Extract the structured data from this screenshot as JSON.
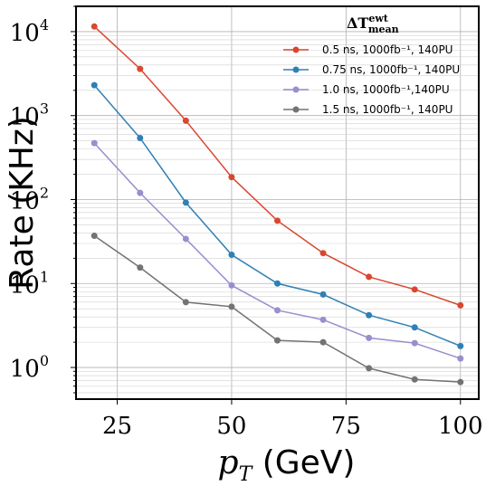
{
  "chart_data": {
    "type": "line",
    "x": [
      20,
      30,
      40,
      50,
      60,
      70,
      80,
      90,
      100
    ],
    "series": [
      {
        "name": "0.5 ns, 1000fb⁻¹, 140PU",
        "color": "#d9472f",
        "values": [
          11500,
          3600,
          870,
          185,
          56,
          23,
          12,
          8.5,
          5.5
        ]
      },
      {
        "name": "0.75 ns, 1000fb⁻¹, 140PU",
        "color": "#2f80b5",
        "values": [
          2300,
          540,
          92,
          22,
          10,
          7.4,
          4.2,
          3.0,
          1.8
        ]
      },
      {
        "name": "1.0 ns, 1000fb⁻¹,140PU",
        "color": "#9b8dce",
        "values": [
          470,
          120,
          34,
          9.5,
          4.8,
          3.7,
          2.25,
          1.95,
          1.28
        ]
      },
      {
        "name": "1.5 ns, 1000fb⁻¹, 140PU",
        "color": "#737373",
        "values": [
          37,
          15.5,
          6.0,
          5.3,
          2.1,
          2.0,
          0.98,
          0.72,
          0.67
        ]
      }
    ],
    "xlabel": "p_T (GeV)",
    "ylabel": "Rate (KHz)",
    "xlim": [
      16,
      104
    ],
    "ylim": [
      0.42,
      20000
    ],
    "yscale": "log",
    "xticks": [
      "25",
      "50",
      "75",
      "100"
    ],
    "yticks": [
      "10^0",
      "10^1",
      "10^2",
      "10^3",
      "10^4"
    ],
    "legend_title": "ΔT^ewt_mean",
    "legend_placement": "top-right",
    "grid": true
  }
}
